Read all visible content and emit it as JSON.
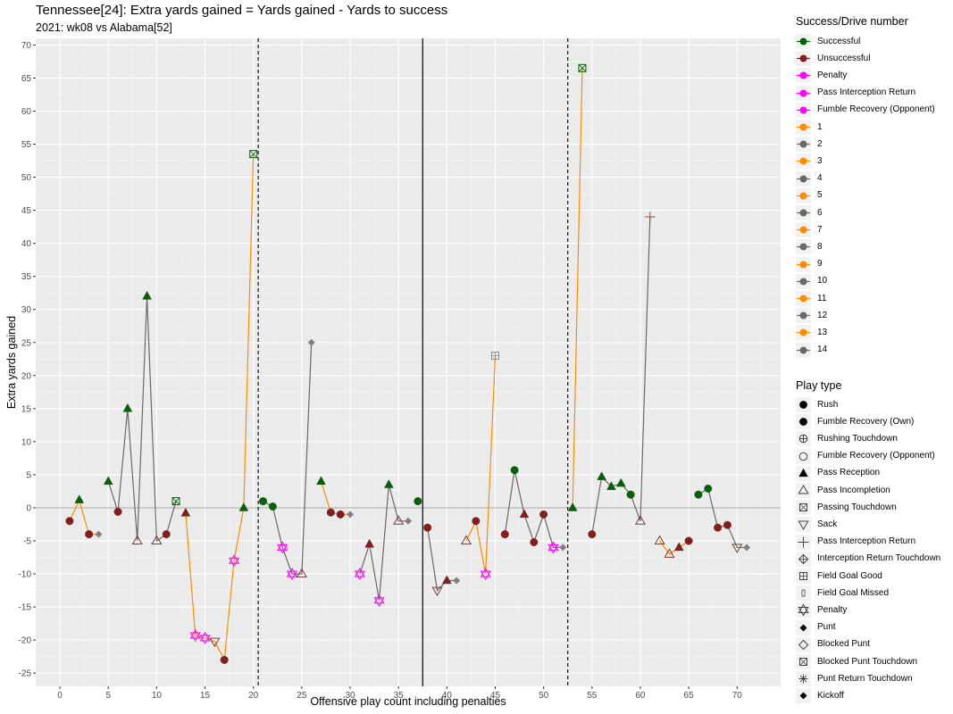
{
  "chart_data": {
    "type": "scatter",
    "title": "Tennessee[24]: Extra yards gained = Yards gained - Yards to success",
    "subtitle": "2021: wk08 vs Alabama[52]",
    "xlabel": "Offensive play count including penalties",
    "ylabel": "Extra yards gained",
    "xlim": [
      -2.5,
      74.5
    ],
    "ylim": [
      -27,
      71
    ],
    "x_ticks": [
      "0",
      "5",
      "10",
      "15",
      "20",
      "25",
      "30",
      "35",
      "40",
      "45",
      "50",
      "55",
      "60",
      "65",
      "70"
    ],
    "y_ticks": [
      "70",
      "65",
      "60",
      "55",
      "50",
      "45",
      "40",
      "35",
      "30",
      "25",
      "20",
      "15",
      "10",
      "5",
      "0",
      "-5",
      "-10",
      "-15",
      "-20",
      "-25"
    ],
    "grid": true,
    "legend_position": "right",
    "reference_lines": {
      "horizontal_y": 0,
      "vertical_solid_x": 37.5,
      "vertical_dashed_x": [
        20.5,
        52.5
      ]
    },
    "colors": {
      "panel": "#ebebeb",
      "grid": "#ffffff",
      "successful": "#006400",
      "unsuccessful": "#8b1a1a",
      "penalty": "#ff00ff",
      "drive_odd": "#ff8c00",
      "drive_even": "#696969"
    },
    "legend_success": {
      "title": "Success/Drive number",
      "items": [
        {
          "label": "Successful",
          "color": "#006400"
        },
        {
          "label": "Unsuccessful",
          "color": "#8b1a1a"
        },
        {
          "label": "Penalty",
          "color": "#ff00ff"
        },
        {
          "label": "Pass Interception Return",
          "color": "#ff00ff"
        },
        {
          "label": "Fumble Recovery (Opponent)",
          "color": "#ff00ff"
        },
        {
          "label": "1",
          "color": "#ff8c00"
        },
        {
          "label": "2",
          "color": "#696969"
        },
        {
          "label": "3",
          "color": "#ff8c00"
        },
        {
          "label": "4",
          "color": "#696969"
        },
        {
          "label": "5",
          "color": "#ff8c00"
        },
        {
          "label": "6",
          "color": "#696969"
        },
        {
          "label": "7",
          "color": "#ff8c00"
        },
        {
          "label": "8",
          "color": "#696969"
        },
        {
          "label": "9",
          "color": "#ff8c00"
        },
        {
          "label": "10",
          "color": "#696969"
        },
        {
          "label": "11",
          "color": "#ff8c00"
        },
        {
          "label": "12",
          "color": "#696969"
        },
        {
          "label": "13",
          "color": "#ff8c00"
        },
        {
          "label": "14",
          "color": "#696969"
        }
      ]
    },
    "legend_play": {
      "title": "Play type",
      "items": [
        {
          "label": "Rush",
          "shape": "circle"
        },
        {
          "label": "Fumble Recovery (Own)",
          "shape": "circle"
        },
        {
          "label": "Rushing Touchdown",
          "shape": "circle-plus"
        },
        {
          "label": "Fumble Recovery (Opponent)",
          "shape": "circle-open"
        },
        {
          "label": "Pass Reception",
          "shape": "triangle"
        },
        {
          "label": "Pass Incompletion",
          "shape": "triangle-open"
        },
        {
          "label": "Passing Touchdown",
          "shape": "square-x"
        },
        {
          "label": "Sack",
          "shape": "triangle-down-open"
        },
        {
          "label": "Pass Interception Return",
          "shape": "plus"
        },
        {
          "label": "Interception Return Touchdown",
          "shape": "diamond-plus"
        },
        {
          "label": "Field Goal Good",
          "shape": "square-plus"
        },
        {
          "label": "Field Goal Missed",
          "shape": "bar"
        },
        {
          "label": "Penalty",
          "shape": "star-of-david"
        },
        {
          "label": "Punt",
          "shape": "diamond"
        },
        {
          "label": "Blocked Punt",
          "shape": "diamond-open"
        },
        {
          "label": "Blocked Punt Touchdown",
          "shape": "square-x"
        },
        {
          "label": "Punt Return Touchdown",
          "shape": "asterisk"
        },
        {
          "label": "Kickoff",
          "shape": "diamond"
        }
      ]
    },
    "drives": [
      {
        "drive": 1,
        "points": [
          {
            "x": 1,
            "y": -2,
            "play": "Rush",
            "result": "Unsuccessful"
          },
          {
            "x": 2,
            "y": 1.2,
            "play": "Pass Reception",
            "result": "Successful"
          },
          {
            "x": 3,
            "y": -4,
            "play": "Rush",
            "result": "Unsuccessful"
          },
          {
            "x": 4,
            "y": -4,
            "play": "Punt",
            "result": "Unsuccessful"
          }
        ]
      },
      {
        "drive": 2,
        "points": [
          {
            "x": 5,
            "y": 4,
            "play": "Pass Reception",
            "result": "Successful"
          },
          {
            "x": 6,
            "y": -0.6,
            "play": "Rush",
            "result": "Unsuccessful"
          },
          {
            "x": 7,
            "y": 15,
            "play": "Pass Reception",
            "result": "Successful"
          },
          {
            "x": 8,
            "y": -5,
            "play": "Pass Incompletion",
            "result": "Unsuccessful"
          },
          {
            "x": 9,
            "y": 32,
            "play": "Pass Reception",
            "result": "Successful"
          },
          {
            "x": 10,
            "y": -5,
            "play": "Pass Incompletion",
            "result": "Unsuccessful"
          },
          {
            "x": 11,
            "y": -4,
            "play": "Rush",
            "result": "Unsuccessful"
          },
          {
            "x": 12,
            "y": 1,
            "play": "Passing Touchdown",
            "result": "Successful"
          }
        ]
      },
      {
        "drive": 3,
        "points": [
          {
            "x": 13,
            "y": -0.8,
            "play": "Pass Reception",
            "result": "Unsuccessful"
          },
          {
            "x": 14,
            "y": -19.3,
            "play": "Penalty",
            "result": "Penalty"
          },
          {
            "x": 15,
            "y": -19.7,
            "play": "Penalty",
            "result": "Penalty"
          },
          {
            "x": 16,
            "y": -20.2,
            "play": "Sack",
            "result": "Unsuccessful"
          },
          {
            "x": 17,
            "y": -23,
            "play": "Rush",
            "result": "Unsuccessful"
          },
          {
            "x": 18,
            "y": -8,
            "play": "Penalty",
            "result": "Penalty"
          },
          {
            "x": 19,
            "y": 0,
            "play": "Pass Reception",
            "result": "Successful"
          },
          {
            "x": 20,
            "y": 53.5,
            "play": "Passing Touchdown",
            "result": "Successful"
          }
        ]
      },
      {
        "drive": 4,
        "points": [
          {
            "x": 21,
            "y": 1,
            "play": "Rush",
            "result": "Successful"
          },
          {
            "x": 22,
            "y": 0.2,
            "play": "Rush",
            "result": "Successful"
          },
          {
            "x": 23,
            "y": -6,
            "play": "Penalty",
            "result": "Penalty"
          },
          {
            "x": 24,
            "y": -10,
            "play": "Penalty",
            "result": "Penalty"
          },
          {
            "x": 25,
            "y": -10,
            "play": "Pass Incompletion",
            "result": "Unsuccessful"
          },
          {
            "x": 26,
            "y": 25,
            "play": "Punt",
            "result": "Unsuccessful"
          }
        ]
      },
      {
        "drive": 5,
        "points": [
          {
            "x": 27,
            "y": 4,
            "play": "Pass Reception",
            "result": "Successful"
          },
          {
            "x": 28,
            "y": -0.7,
            "play": "Rush",
            "result": "Unsuccessful"
          },
          {
            "x": 29,
            "y": -1,
            "play": "Rush",
            "result": "Unsuccessful"
          },
          {
            "x": 30,
            "y": -1,
            "play": "Punt",
            "result": "Unsuccessful"
          }
        ]
      },
      {
        "drive": 6,
        "points": [
          {
            "x": 31,
            "y": -10,
            "play": "Penalty",
            "result": "Penalty"
          },
          {
            "x": 32,
            "y": -5.5,
            "play": "Pass Reception",
            "result": "Unsuccessful"
          },
          {
            "x": 33,
            "y": -14,
            "play": "Penalty",
            "result": "Penalty"
          },
          {
            "x": 34,
            "y": 3.5,
            "play": "Pass Reception",
            "result": "Successful"
          },
          {
            "x": 35,
            "y": -2,
            "play": "Pass Incompletion",
            "result": "Unsuccessful"
          },
          {
            "x": 36,
            "y": -2,
            "play": "Punt",
            "result": "Unsuccessful"
          }
        ]
      },
      {
        "drive": 7,
        "points": [
          {
            "x": 37,
            "y": 1,
            "play": "Rush",
            "result": "Successful"
          }
        ]
      },
      {
        "drive": 8,
        "points": [
          {
            "x": 38,
            "y": -3,
            "play": "Rush",
            "result": "Unsuccessful"
          },
          {
            "x": 39,
            "y": -12.5,
            "play": "Sack",
            "result": "Unsuccessful"
          },
          {
            "x": 40,
            "y": -11,
            "play": "Pass Reception",
            "result": "Unsuccessful"
          },
          {
            "x": 41,
            "y": -11,
            "play": "Punt",
            "result": "Unsuccessful"
          }
        ]
      },
      {
        "drive": 9,
        "points": [
          {
            "x": 42,
            "y": -5,
            "play": "Pass Incompletion",
            "result": "Unsuccessful"
          },
          {
            "x": 43,
            "y": -2,
            "play": "Rush",
            "result": "Unsuccessful"
          },
          {
            "x": 44,
            "y": -10,
            "play": "Penalty",
            "result": "Penalty"
          },
          {
            "x": 45,
            "y": 23,
            "play": "Field Goal Good",
            "result": "Successful"
          }
        ]
      },
      {
        "drive": 10,
        "points": [
          {
            "x": 46,
            "y": -4,
            "play": "Rush",
            "result": "Unsuccessful"
          },
          {
            "x": 47,
            "y": 5.7,
            "play": "Rush",
            "result": "Successful"
          },
          {
            "x": 48,
            "y": -1,
            "play": "Pass Reception",
            "result": "Unsuccessful"
          },
          {
            "x": 49,
            "y": -5.2,
            "play": "Rush",
            "result": "Unsuccessful"
          },
          {
            "x": 50,
            "y": -1,
            "play": "Rush",
            "result": "Unsuccessful"
          },
          {
            "x": 51,
            "y": -6,
            "play": "Penalty",
            "result": "Penalty"
          },
          {
            "x": 52,
            "y": -6,
            "play": "Punt",
            "result": "Unsuccessful"
          }
        ]
      },
      {
        "drive": 11,
        "points": [
          {
            "x": 53,
            "y": 0,
            "play": "Pass Reception",
            "result": "Successful"
          },
          {
            "x": 54,
            "y": 66.5,
            "play": "Passing Touchdown",
            "result": "Successful"
          }
        ]
      },
      {
        "drive": 12,
        "points": [
          {
            "x": 55,
            "y": -4,
            "play": "Rush",
            "result": "Unsuccessful"
          },
          {
            "x": 56,
            "y": 4.7,
            "play": "Pass Reception",
            "result": "Successful"
          },
          {
            "x": 57,
            "y": 3.2,
            "play": "Pass Reception",
            "result": "Successful"
          },
          {
            "x": 58,
            "y": 3.7,
            "play": "Pass Reception",
            "result": "Successful"
          },
          {
            "x": 59,
            "y": 2,
            "play": "Rush",
            "result": "Successful"
          },
          {
            "x": 60,
            "y": -2,
            "play": "Pass Incompletion",
            "result": "Unsuccessful"
          },
          {
            "x": 61,
            "y": 44,
            "play": "Pass Interception Return",
            "result": "Pass Interception Return"
          }
        ]
      },
      {
        "drive": 13,
        "points": [
          {
            "x": 62,
            "y": -5,
            "play": "Pass Incompletion",
            "result": "Unsuccessful"
          },
          {
            "x": 63,
            "y": -7,
            "play": "Pass Incompletion",
            "result": "Unsuccessful"
          },
          {
            "x": 64,
            "y": -6,
            "play": "Pass Reception",
            "result": "Unsuccessful"
          },
          {
            "x": 65,
            "y": -5,
            "play": "Rush",
            "result": "Unsuccessful"
          }
        ]
      },
      {
        "drive": 14,
        "points": [
          {
            "x": 66,
            "y": 2,
            "play": "Rush",
            "result": "Successful"
          },
          {
            "x": 67,
            "y": 2.9,
            "play": "Rush",
            "result": "Successful"
          },
          {
            "x": 68,
            "y": -3,
            "play": "Rush",
            "result": "Unsuccessful"
          },
          {
            "x": 69,
            "y": -2.6,
            "play": "Rush",
            "result": "Unsuccessful"
          },
          {
            "x": 70,
            "y": -6,
            "play": "Sack",
            "result": "Unsuccessful"
          },
          {
            "x": 71,
            "y": -6,
            "play": "Punt",
            "result": "Unsuccessful"
          }
        ]
      }
    ]
  }
}
